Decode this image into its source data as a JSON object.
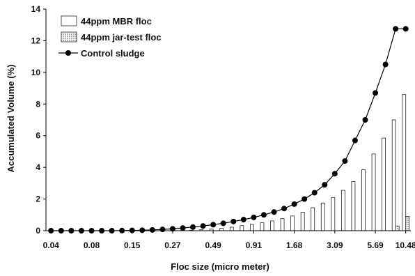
{
  "chart_data": {
    "type": "bar",
    "xlabel": "Floc size (micro meter)",
    "ylabel": "Accumulated Volume (%)",
    "ylim": [
      0,
      14
    ],
    "yticks": [
      "0",
      "2",
      "4",
      "6",
      "8",
      "10",
      "12",
      "14"
    ],
    "x_tick_labels": [
      "0.04",
      "0.08",
      "0.15",
      "0.27",
      "0.49",
      "0.91",
      "1.68",
      "3.09",
      "5.69",
      "10.48"
    ],
    "grid": false,
    "legend_position": "top-left",
    "num_bins": 36,
    "series": [
      {
        "name": "44ppm MBR floc",
        "kind": "bar",
        "color": "#ffffff",
        "values": [
          0,
          0,
          0,
          0,
          0,
          0,
          0,
          0,
          0,
          0,
          0,
          0,
          0,
          0.01,
          0.03,
          0.06,
          0.1,
          0.15,
          0.22,
          0.32,
          0.4,
          0.5,
          0.62,
          0.76,
          0.93,
          1.17,
          1.45,
          1.75,
          2.1,
          2.55,
          3.1,
          3.85,
          4.85,
          5.85,
          7.0,
          8.6
        ]
      },
      {
        "name": "44ppm jar-test floc",
        "kind": "bar",
        "pattern": "dotted",
        "values": [
          0,
          0,
          0,
          0,
          0,
          0,
          0,
          0,
          0,
          0,
          0,
          0,
          0,
          0,
          0,
          0,
          0,
          0,
          0,
          0,
          0,
          0,
          0,
          0,
          0,
          0,
          0,
          0,
          0,
          0,
          0,
          0,
          0,
          0,
          0.3,
          0.9
        ]
      },
      {
        "name": "Control sludge",
        "kind": "line",
        "marker": "circle",
        "color": "#000000",
        "values": [
          0,
          0,
          0,
          0,
          0,
          0,
          0,
          0.01,
          0.02,
          0.03,
          0.05,
          0.08,
          0.12,
          0.17,
          0.23,
          0.3,
          0.38,
          0.47,
          0.58,
          0.7,
          0.84,
          1.0,
          1.18,
          1.4,
          1.68,
          2.0,
          2.4,
          2.9,
          3.6,
          4.4,
          5.7,
          7.0,
          8.7,
          10.5,
          12.75,
          12.75
        ]
      }
    ]
  }
}
